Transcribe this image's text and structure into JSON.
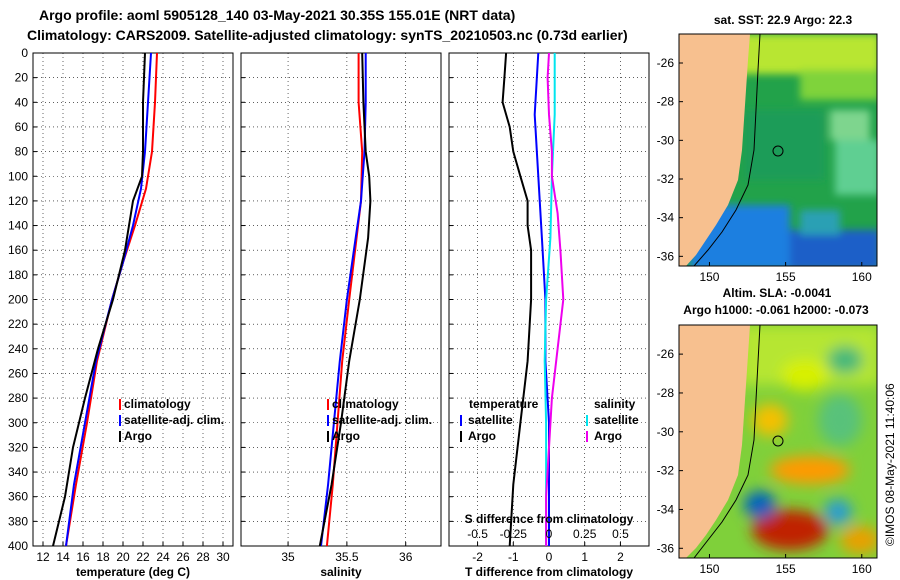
{
  "titles": {
    "line1": "Argo profile: aoml 5905128_140 03-May-2021 30.35S 155.01E (NRT data)",
    "line2": "Climatology: CARS2009. Satellite-adjusted climatology: synTS_20210503.nc (0.73d earlier)"
  },
  "colors": {
    "climatology": "#ff0000",
    "satellite": "#0000ff",
    "argo": "#000000",
    "sal_satellite": "#00e5ee",
    "sal_diff": "#ee00ee",
    "land": "#f7c08f"
  },
  "chart_data": [
    {
      "type": "line",
      "name": "temperature-profile",
      "xlabel": "temperature (deg C)",
      "ylabel": "depth",
      "xlim": [
        11,
        31
      ],
      "ylim": [
        400,
        0
      ],
      "x_ticks": [
        "12",
        "14",
        "16",
        "18",
        "20",
        "22",
        "24",
        "26",
        "28",
        "30"
      ],
      "y_ticks": [
        "0",
        "20",
        "40",
        "60",
        "80",
        "100",
        "120",
        "140",
        "160",
        "180",
        "200",
        "220",
        "240",
        "260",
        "280",
        "300",
        "320",
        "340",
        "360",
        "380",
        "400"
      ],
      "legend": [
        "climatology",
        "satellite-adj. clim.",
        "Argo"
      ],
      "series": [
        {
          "name": "climatology",
          "depth": [
            0,
            40,
            80,
            110,
            140,
            170,
            200,
            250,
            300,
            350,
            400
          ],
          "values": [
            23.4,
            23.2,
            22.9,
            22.3,
            21.2,
            20.0,
            18.9,
            17.4,
            16.4,
            15.3,
            14.3
          ]
        },
        {
          "name": "satellite-adj. clim.",
          "depth": [
            0,
            40,
            80,
            110,
            140,
            170,
            200,
            250,
            300,
            350,
            400
          ],
          "values": [
            22.8,
            22.5,
            22.2,
            21.8,
            21.0,
            20.0,
            18.9,
            17.3,
            16.2,
            15.1,
            14.3
          ]
        },
        {
          "name": "Argo",
          "depth": [
            0,
            40,
            80,
            100,
            120,
            140,
            160,
            180,
            200,
            240,
            280,
            320,
            360,
            400
          ],
          "values": [
            22.2,
            22.0,
            22.0,
            21.9,
            21.0,
            20.6,
            20.2,
            19.6,
            19.0,
            17.5,
            16.2,
            15.0,
            14.2,
            13.0
          ]
        }
      ]
    },
    {
      "type": "line",
      "name": "salinity-profile",
      "xlabel": "salinity",
      "ylabel": "depth",
      "xlim": [
        34.6,
        36.3
      ],
      "ylim": [
        400,
        0
      ],
      "x_ticks": [
        "35",
        "35.5",
        "36"
      ],
      "legend": [
        "climatology",
        "satellite-adj. clim.",
        "Argo"
      ],
      "series": [
        {
          "name": "climatology",
          "depth": [
            0,
            40,
            80,
            120,
            160,
            200,
            250,
            300,
            350,
            400
          ],
          "values": [
            35.6,
            35.6,
            35.63,
            35.62,
            35.57,
            35.52,
            35.46,
            35.42,
            35.38,
            35.33
          ]
        },
        {
          "name": "satellite-adj. clim.",
          "depth": [
            0,
            40,
            80,
            120,
            160,
            200,
            250,
            300,
            350,
            400
          ],
          "values": [
            35.66,
            35.66,
            35.65,
            35.62,
            35.56,
            35.5,
            35.44,
            35.39,
            35.34,
            35.28
          ]
        },
        {
          "name": "Argo",
          "depth": [
            0,
            40,
            80,
            100,
            120,
            150,
            200,
            250,
            300,
            350,
            400
          ],
          "values": [
            35.63,
            35.64,
            35.66,
            35.69,
            35.7,
            35.68,
            35.61,
            35.52,
            35.45,
            35.37,
            35.27
          ]
        }
      ]
    },
    {
      "type": "line",
      "name": "difference-profile",
      "xlabel": "T difference from climatology",
      "x2label": "S difference from climatology",
      "ylabel": "depth",
      "xlim": [
        -2.8,
        2.8
      ],
      "x2lim": [
        -0.7,
        0.7
      ],
      "ylim": [
        400,
        0
      ],
      "x_ticks": [
        "-2",
        "-1",
        "0",
        "1",
        "2"
      ],
      "x2_ticks": [
        "-0.5",
        "-0.25",
        "0",
        "0.25",
        "0.5"
      ],
      "legend": {
        "temperature_header": "temperature",
        "salinity_header": "salinity",
        "labels": [
          "satellite",
          "Argo",
          "satellite",
          "Argo"
        ]
      },
      "series": [
        {
          "name": "T satellite",
          "depth": [
            0,
            50,
            100,
            150,
            200,
            250,
            300,
            350,
            400
          ],
          "values": [
            -0.3,
            -0.4,
            -0.3,
            -0.2,
            -0.1,
            -0.1,
            0.0,
            0.0,
            0.0
          ]
        },
        {
          "name": "T Argo",
          "depth": [
            0,
            20,
            40,
            60,
            80,
            100,
            120,
            140,
            160,
            200,
            250,
            300,
            350,
            400
          ],
          "values": [
            -1.2,
            -1.25,
            -1.3,
            -1.1,
            -1.0,
            -0.8,
            -0.6,
            -0.6,
            -0.5,
            -0.5,
            -0.6,
            -0.8,
            -1.0,
            -1.1
          ]
        },
        {
          "name": "S satellite",
          "depth": [
            0,
            50,
            100,
            150,
            200,
            250,
            300,
            350,
            400
          ],
          "values": [
            0.04,
            0.04,
            0.02,
            0.01,
            -0.02,
            -0.03,
            -0.02,
            -0.02,
            -0.02
          ]
        },
        {
          "name": "S Argo",
          "depth": [
            0,
            20,
            50,
            80,
            100,
            130,
            160,
            200,
            240,
            280,
            320,
            360,
            400
          ],
          "values": [
            0.0,
            -0.01,
            0.0,
            0.02,
            0.02,
            0.06,
            0.08,
            0.1,
            0.06,
            0.02,
            0.0,
            -0.02,
            -0.02
          ]
        }
      ]
    },
    {
      "type": "heatmap",
      "name": "sst-map",
      "title": "sat. SST: 22.9 Argo: 22.3",
      "x_ticks": [
        "150",
        "155",
        "160"
      ],
      "y_ticks": [
        "-26",
        "-28",
        "-30",
        "-32",
        "-34",
        "-36"
      ],
      "xlim": [
        148,
        161
      ],
      "ylim": [
        -36.5,
        -24.5
      ],
      "float_position": [
        155.01,
        -30.35
      ]
    },
    {
      "type": "heatmap",
      "name": "sla-map",
      "title": "Altim. SLA: -0.0041",
      "subtitle": "Argo h1000: -0.061 h2000: -0.073",
      "x_ticks": [
        "150",
        "155",
        "160"
      ],
      "y_ticks": [
        "-26",
        "-28",
        "-30",
        "-32",
        "-34",
        "-36"
      ],
      "xlim": [
        148,
        161
      ],
      "ylim": [
        -36.5,
        -24.5
      ],
      "float_position": [
        155.01,
        -30.35
      ]
    }
  ],
  "credit": "©IMOS 08-May-2021 11:40:06"
}
